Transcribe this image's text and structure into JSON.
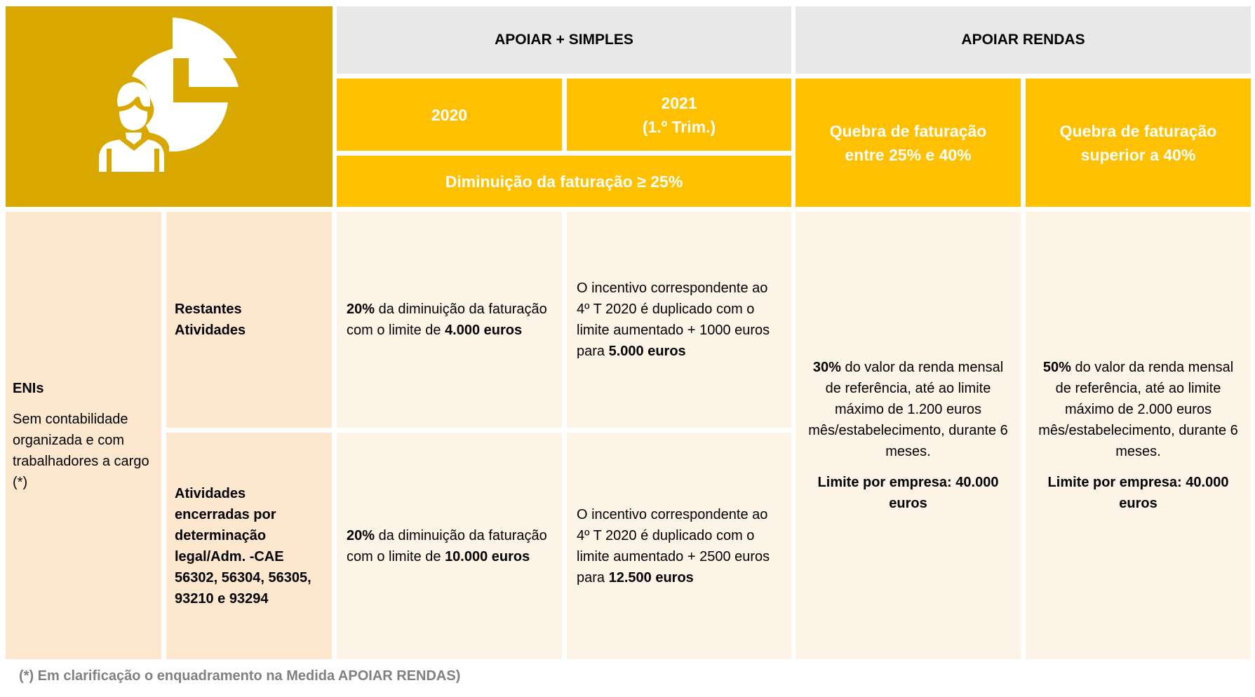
{
  "header": {
    "apoiar_simples": "APOIAR + SIMPLES",
    "apoiar_rendas": "APOIAR RENDAS",
    "year_2020": "2020",
    "year_2021": "2021",
    "year_2021_sub": "(1.º Trim.)",
    "diminuicao": "Diminuição da faturação ≥ 25%",
    "quebra_1_line1": "Quebra de faturação",
    "quebra_1_line2": "entre 25% e 40%",
    "quebra_2_line1": "Quebra de faturação",
    "quebra_2_line2": "superior a 40%"
  },
  "entity": {
    "title": "ENIs",
    "description": "Sem contabilidade organizada e com trabalhadores a cargo (*)"
  },
  "rows": [
    {
      "label": "Restantes Atividades",
      "simples_2020_bold": "20%",
      "simples_2020_text": " da diminuição da faturação com o limite de ",
      "simples_2020_limit": "4.000 euros",
      "simples_2021_text": "O incentivo correspondente ao 4º T 2020 é duplicado com o limite aumentado + 1000 euros para ",
      "simples_2021_limit": "5.000 euros"
    },
    {
      "label": "Atividades encerradas por determinação legal/Adm. -CAE 56302, 56304, 56305, 93210 e 93294",
      "simples_2020_bold": "20%",
      "simples_2020_text": " da diminuição da faturação com o limite de ",
      "simples_2020_limit": "10.000 euros",
      "simples_2021_text": "O incentivo correspondente ao 4º T 2020 é duplicado com o limite aumentado + 2500 euros para ",
      "simples_2021_limit": "12.500 euros"
    }
  ],
  "rendas": [
    {
      "pct": "30%",
      "text": " do valor da renda mensal de referência, até ao limite máximo de 1.200 euros mês/estabelecimento, durante 6 meses.",
      "limit": "Limite por empresa: 40.000 euros"
    },
    {
      "pct": "50%",
      "text": " do valor da renda mensal de referência, até ao limite máximo de 2.000 euros mês/estabelecimento, durante 6 meses.",
      "limit": "Limite por empresa: 40.000 euros"
    }
  ],
  "footnote": "(*) Em clarificação  o enquadramento na Medida APOIAR RENDAS)",
  "colors": {
    "gold": "#D9A800",
    "yellow": "#FFC000",
    "gray": "#E8E8E8",
    "peach": "#FDE7CF",
    "light": "#FEF3E7"
  }
}
